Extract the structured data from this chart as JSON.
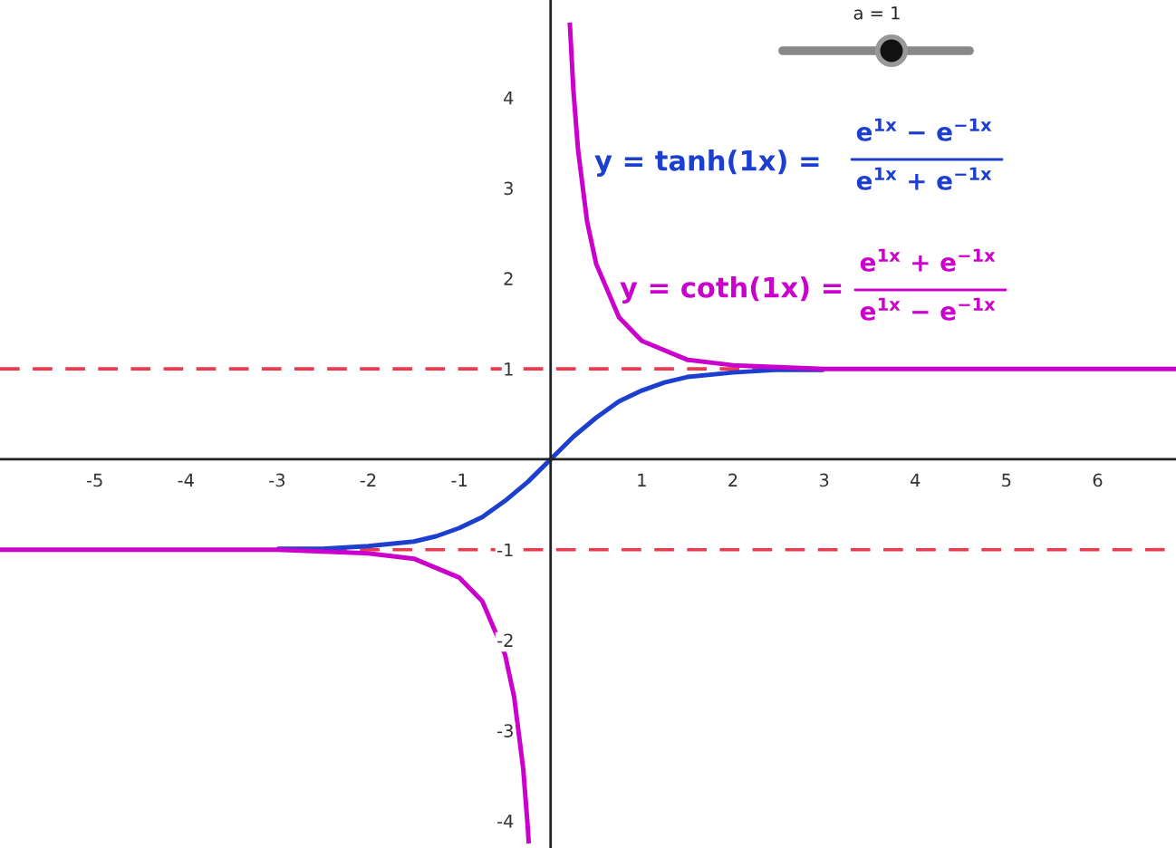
{
  "chart_data": {
    "type": "line",
    "xlim": [
      -6.04,
      6.86
    ],
    "ylim": [
      -4.3,
      5.08
    ],
    "xticks": [
      -5,
      -4,
      -3,
      -2,
      -1,
      1,
      2,
      3,
      4,
      5,
      6
    ],
    "yticks": [
      -4,
      -3,
      -2,
      -1,
      1,
      2,
      3,
      4
    ],
    "grid": false,
    "legend": false,
    "marker": "none",
    "line_style": "solid",
    "series": [
      {
        "color": "#1c3fd0",
        "x": [
          -3,
          -2.5,
          -2,
          -1.5,
          -1.25,
          -1,
          -0.75,
          -0.5,
          -0.25,
          0,
          0.25,
          0.5,
          0.75,
          1,
          1.25,
          1.5,
          2,
          2.5,
          3
        ],
        "values": [
          -0.99,
          -0.99,
          -0.96,
          -0.91,
          -0.85,
          -0.76,
          -0.64,
          -0.46,
          -0.25,
          0,
          0.25,
          0.46,
          0.64,
          0.76,
          0.85,
          0.91,
          0.96,
          0.99,
          0.99
        ]
      },
      {
        "color": "#cc00cc",
        "x": [
          -6.04,
          -5,
          -4,
          -3,
          -2,
          -1.5,
          -1,
          -0.75,
          -0.5,
          -0.4,
          -0.3,
          -0.25,
          -0.24,
          0,
          0.21,
          0.25,
          0.3,
          0.4,
          0.5,
          0.75,
          1,
          1.5,
          2,
          3,
          4,
          5,
          6,
          6.86
        ],
        "values": [
          -1.0,
          -1.0,
          -1.0,
          -1.0,
          -1.04,
          -1.1,
          -1.31,
          -1.57,
          -2.16,
          -2.63,
          -3.43,
          -4.08,
          -4.25,
          null,
          4.83,
          4.08,
          3.43,
          2.63,
          2.16,
          1.57,
          1.31,
          1.1,
          1.04,
          1.0,
          1.0,
          1.0,
          1.0,
          1.0
        ]
      }
    ],
    "ref_lines": [
      {
        "axis": "y",
        "value": 1,
        "color": "#f0384f",
        "line_style": "dashed"
      },
      {
        "axis": "y",
        "value": -1,
        "color": "#f0384f",
        "line_style": "dashed"
      }
    ],
    "annotations": [
      "a = 1",
      "y = tanh(1x) =",
      "e$^{1x}$ − e$^{−1x}$",
      "e$^{1x}$ + e$^{−1x}$",
      "y = coth(1x) =",
      "e$^{1x}$ + e$^{−1x}$",
      "e$^{1x}$ − e$^{−1x}$"
    ]
  }
}
